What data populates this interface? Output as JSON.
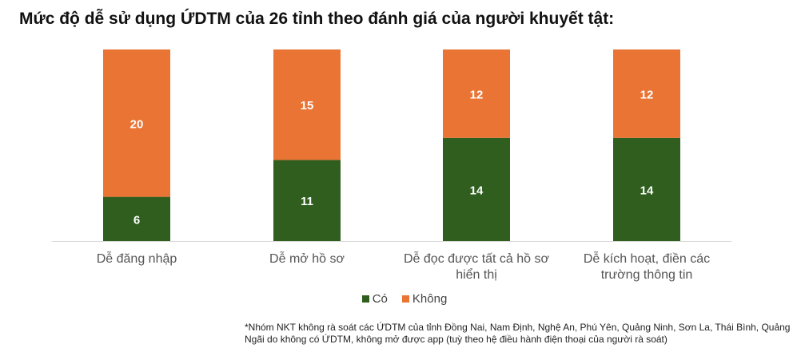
{
  "title": "Mức độ dễ sử dụng ỨDTM của 26 tỉnh theo đánh giá của người khuyết tật:",
  "legend": {
    "co": "Có",
    "khong": "Không"
  },
  "colors": {
    "co": "#2f5e1f",
    "khong": "#e97434"
  },
  "note": "*Nhóm NKT không rà soát các ỨDTM của tỉnh Đồng Nai, Nam Định, Nghệ An, Phú Yên, Quảng Ninh, Sơn La, Thái Bình, Quảng Ngãi do không có ỨDTM, không mở được app (tuỳ theo hệ điều hành điện thoại của người rà soát)",
  "chart_data": {
    "type": "bar",
    "stacked": true,
    "categories": [
      [
        "Dễ đăng nhập"
      ],
      [
        "Dễ mở hồ sơ"
      ],
      [
        "Dễ đọc được tất cả hồ sơ",
        "hiển thị"
      ],
      [
        "Dễ kích hoạt, điền các",
        "trường thông tin"
      ]
    ],
    "series": [
      {
        "name": "Có",
        "values": [
          6,
          11,
          14,
          14
        ]
      },
      {
        "name": "Không",
        "values": [
          20,
          15,
          12,
          12
        ]
      }
    ],
    "ylim": [
      0,
      26
    ],
    "grid": false,
    "legend_position": "bottom"
  }
}
